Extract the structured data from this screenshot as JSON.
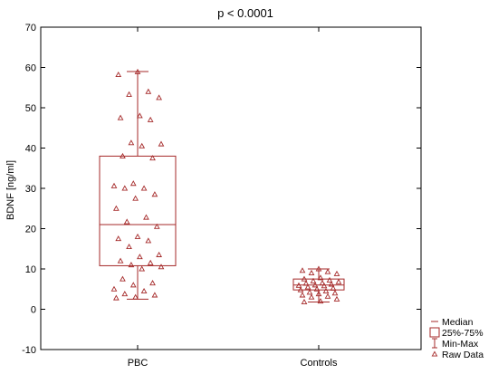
{
  "chart_data": {
    "type": "box",
    "title": "p < 0.0001",
    "ylabel": "BDNF [ng/ml]",
    "xlabel": "",
    "ylim": [
      -10,
      70
    ],
    "yticks": [
      -10,
      0,
      10,
      20,
      30,
      40,
      50,
      60,
      70
    ],
    "grid": false,
    "legend_position": "bottom-right",
    "color": "#a52a2a",
    "categories": [
      "PBC",
      "Controls"
    ],
    "boxes": [
      {
        "category": "PBC",
        "min": 2.5,
        "q1": 10.8,
        "median": 21.0,
        "q3": 38.0,
        "max": 59.0,
        "raw": [
          58.9,
          58.2,
          54.0,
          53.3,
          52.5,
          48.0,
          47.5,
          47.0,
          41.3,
          41.0,
          40.5,
          38.0,
          37.5,
          31.2,
          30.6,
          30.0,
          30.0,
          28.5,
          27.5,
          25.0,
          22.8,
          21.7,
          20.5,
          18.0,
          17.5,
          17.0,
          15.5,
          13.5,
          13.0,
          12.0,
          11.5,
          11.0,
          10.5,
          10.0,
          7.5,
          6.5,
          6.0,
          5.0,
          4.5,
          3.8,
          3.5,
          3.0,
          2.8
        ]
      },
      {
        "category": "Controls",
        "min": 1.8,
        "q1": 4.8,
        "median": 6.0,
        "q3": 7.5,
        "max": 10.0,
        "raw": [
          10.0,
          9.6,
          9.3,
          9.0,
          8.8,
          7.8,
          7.5,
          7.2,
          7.0,
          6.8,
          6.5,
          6.4,
          6.2,
          6.0,
          5.9,
          5.8,
          5.5,
          5.2,
          5.0,
          4.8,
          4.5,
          4.2,
          4.0,
          3.8,
          3.5,
          3.2,
          3.0,
          2.5,
          2.0,
          1.8
        ]
      }
    ],
    "legend": [
      {
        "symbol": "median",
        "label": "Median"
      },
      {
        "symbol": "box",
        "label": "25%-75%"
      },
      {
        "symbol": "whisker",
        "label": "Min-Max"
      },
      {
        "symbol": "triangle",
        "label": "Raw Data"
      }
    ]
  }
}
